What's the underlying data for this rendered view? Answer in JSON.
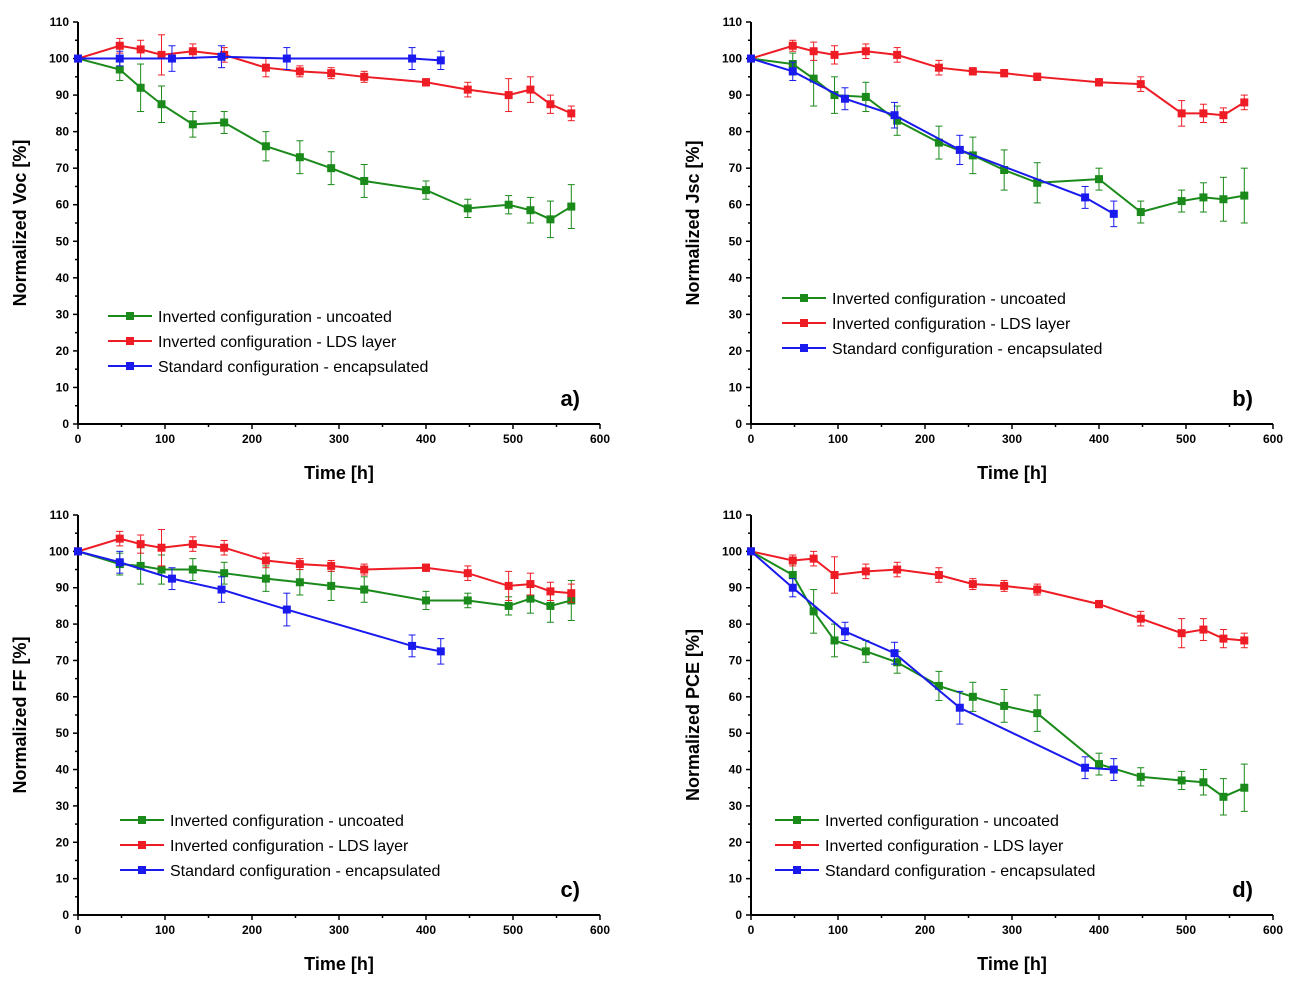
{
  "legend_entries": [
    "Inverted configuration - uncoated",
    "Inverted configuration - LDS layer",
    "Standard configuration - encapsulated"
  ],
  "series_colors": [
    "#1a8a1a",
    "#ee1c24",
    "#1a1aee"
  ],
  "chart_data": [
    {
      "type": "line",
      "panel_label": "a)",
      "xlabel": "Time [h]",
      "ylabel": "Normalized Voc [%]",
      "xlim": [
        0,
        600
      ],
      "ylim": [
        0,
        110
      ],
      "xticks": [
        0,
        100,
        200,
        300,
        400,
        500,
        600
      ],
      "yticks": [
        0,
        10,
        20,
        30,
        40,
        50,
        60,
        70,
        80,
        90,
        100,
        110
      ],
      "legend_position": "lower-left",
      "series": [
        {
          "name": "Inverted configuration - uncoated",
          "color": "#1a8a1a",
          "x": [
            0,
            48,
            72,
            96,
            132,
            168,
            216,
            255,
            291,
            329,
            400,
            448,
            495,
            520,
            543,
            567
          ],
          "y": [
            100,
            97,
            92,
            87.5,
            82,
            82.5,
            76,
            73,
            70,
            66.5,
            64,
            59,
            60,
            58.5,
            56,
            59.5
          ],
          "err": [
            0,
            3,
            6.5,
            5,
            3.5,
            3,
            4,
            4.5,
            4.5,
            4.5,
            2.5,
            2.5,
            2.5,
            3.5,
            5,
            6
          ]
        },
        {
          "name": "Inverted configuration - LDS layer",
          "color": "#ee1c24",
          "x": [
            0,
            48,
            72,
            96,
            132,
            168,
            216,
            255,
            291,
            329,
            400,
            448,
            495,
            520,
            543,
            567
          ],
          "y": [
            100,
            103.5,
            102.5,
            101,
            102,
            101,
            97.5,
            96.5,
            96,
            95,
            93.5,
            91.5,
            90,
            91.5,
            87.5,
            85
          ],
          "err": [
            0,
            2,
            2.5,
            5.5,
            2,
            2,
            2.5,
            1.5,
            1.5,
            1.5,
            1,
            2,
            4.5,
            3.5,
            2.5,
            2
          ]
        },
        {
          "name": "Standard configuration - encapsulated",
          "color": "#1a1aee",
          "x": [
            0,
            48,
            108,
            165,
            240,
            384,
            417
          ],
          "y": [
            100,
            100,
            100,
            100.5,
            100,
            100,
            99.5
          ],
          "err": [
            0,
            2,
            3.5,
            3,
            3,
            3,
            2.5
          ]
        }
      ]
    },
    {
      "type": "line",
      "panel_label": "b)",
      "xlabel": "Time [h]",
      "ylabel": "Normalized Jsc [%]",
      "xlim": [
        0,
        600
      ],
      "ylim": [
        0,
        110
      ],
      "xticks": [
        0,
        100,
        200,
        300,
        400,
        500,
        600
      ],
      "yticks": [
        0,
        10,
        20,
        30,
        40,
        50,
        60,
        70,
        80,
        90,
        100,
        110
      ],
      "legend_position": "center-left",
      "series": [
        {
          "name": "Inverted configuration - uncoated",
          "color": "#1a8a1a",
          "x": [
            0,
            48,
            72,
            96,
            132,
            168,
            216,
            255,
            291,
            329,
            400,
            448,
            495,
            520,
            543,
            567
          ],
          "y": [
            100,
            98.5,
            94.5,
            90,
            89.5,
            83,
            77,
            73.5,
            69.5,
            66,
            67,
            58,
            61,
            62,
            61.5,
            62.5
          ],
          "err": [
            0,
            3,
            7.5,
            5,
            4,
            4,
            4.5,
            5,
            5.5,
            5.5,
            3,
            3,
            3,
            4,
            6,
            7.5
          ]
        },
        {
          "name": "Inverted configuration - LDS layer",
          "color": "#ee1c24",
          "x": [
            0,
            48,
            72,
            96,
            132,
            168,
            216,
            255,
            291,
            329,
            400,
            448,
            495,
            520,
            543,
            567
          ],
          "y": [
            100,
            103.5,
            102,
            101,
            102,
            101,
            97.5,
            96.5,
            96,
            95,
            93.5,
            93,
            85,
            85,
            84.5,
            88
          ],
          "err": [
            0,
            1.5,
            2.5,
            2.5,
            2,
            2,
            2,
            1,
            1,
            1,
            1,
            2,
            3.5,
            2.5,
            2,
            2
          ]
        },
        {
          "name": "Standard configuration - encapsulated",
          "color": "#1a1aee",
          "x": [
            0,
            48,
            108,
            165,
            240,
            384,
            417
          ],
          "y": [
            100,
            96.5,
            89,
            84.5,
            75,
            62,
            57.5
          ],
          "err": [
            0,
            2.5,
            3,
            3.5,
            4,
            3,
            3.5
          ]
        }
      ]
    },
    {
      "type": "line",
      "panel_label": "c)",
      "xlabel": "Time [h]",
      "ylabel": "Normalized FF [%]",
      "xlim": [
        0,
        600
      ],
      "ylim": [
        0,
        110
      ],
      "xticks": [
        0,
        100,
        200,
        300,
        400,
        500,
        600
      ],
      "yticks": [
        0,
        10,
        20,
        30,
        40,
        50,
        60,
        70,
        80,
        90,
        100,
        110
      ],
      "legend_position": "lower-left",
      "series": [
        {
          "name": "Inverted configuration - uncoated",
          "color": "#1a8a1a",
          "x": [
            0,
            48,
            72,
            96,
            132,
            168,
            216,
            255,
            291,
            329,
            400,
            448,
            495,
            520,
            543,
            567
          ],
          "y": [
            100,
            96.5,
            96,
            95,
            95,
            94,
            92.5,
            91.5,
            90.5,
            89.5,
            86.5,
            86.5,
            85,
            87,
            85,
            86.5
          ],
          "err": [
            0,
            3,
            5,
            4,
            3,
            3,
            3.5,
            3.5,
            4,
            3.5,
            2.5,
            2,
            2.5,
            4,
            4.5,
            5.5
          ]
        },
        {
          "name": "Inverted configuration - LDS layer",
          "color": "#ee1c24",
          "x": [
            0,
            48,
            72,
            96,
            132,
            168,
            216,
            255,
            291,
            329,
            400,
            448,
            495,
            520,
            543,
            567
          ],
          "y": [
            100,
            103.5,
            102,
            101,
            102,
            101,
            97.5,
            96.5,
            96,
            95,
            95.5,
            94,
            90.5,
            91,
            89,
            88.5
          ],
          "err": [
            0,
            2,
            2.5,
            5,
            2,
            2,
            2,
            1.5,
            1.5,
            1.5,
            1,
            2,
            4,
            3,
            2.5,
            2.5
          ]
        },
        {
          "name": "Standard configuration - encapsulated",
          "color": "#1a1aee",
          "x": [
            0,
            48,
            108,
            165,
            240,
            384,
            417
          ],
          "y": [
            100,
            97,
            92.5,
            89.5,
            84,
            74,
            72.5
          ],
          "err": [
            0,
            3,
            3,
            3.5,
            4.5,
            3,
            3.5
          ]
        }
      ]
    },
    {
      "type": "line",
      "panel_label": "d)",
      "xlabel": "Time [h]",
      "ylabel": "Normalized PCE [%]",
      "xlim": [
        0,
        600
      ],
      "ylim": [
        0,
        110
      ],
      "xticks": [
        0,
        100,
        200,
        300,
        400,
        500,
        600
      ],
      "yticks": [
        0,
        10,
        20,
        30,
        40,
        50,
        60,
        70,
        80,
        90,
        100,
        110
      ],
      "legend_position": "lower-left",
      "series": [
        {
          "name": "Inverted configuration - uncoated",
          "color": "#1a8a1a",
          "x": [
            0,
            48,
            72,
            96,
            132,
            168,
            216,
            255,
            291,
            329,
            400,
            448,
            495,
            520,
            543,
            567
          ],
          "y": [
            100,
            93.5,
            83.5,
            75.5,
            72.5,
            69.5,
            63,
            60,
            57.5,
            55.5,
            41.5,
            38,
            37,
            36.5,
            32.5,
            35
          ],
          "err": [
            0,
            3,
            6,
            4.5,
            3,
            3,
            4,
            4,
            4.5,
            5,
            3,
            2.5,
            2.5,
            3.5,
            5,
            6.5
          ]
        },
        {
          "name": "Inverted configuration - LDS layer",
          "color": "#ee1c24",
          "x": [
            0,
            48,
            72,
            96,
            132,
            168,
            216,
            255,
            291,
            329,
            400,
            448,
            495,
            520,
            543,
            567
          ],
          "y": [
            100,
            97.5,
            98,
            93.5,
            94.5,
            95,
            93.5,
            91,
            90.5,
            89.5,
            85.5,
            81.5,
            77.5,
            78.5,
            76,
            75.5
          ],
          "err": [
            0,
            1.5,
            2,
            5,
            2,
            2,
            2,
            1.5,
            1.5,
            1.5,
            1,
            2,
            4,
            3,
            2.5,
            2
          ]
        },
        {
          "name": "Standard configuration - encapsulated",
          "color": "#1a1aee",
          "x": [
            0,
            48,
            108,
            165,
            240,
            384,
            417
          ],
          "y": [
            100,
            90,
            78,
            72,
            57,
            40.5,
            40
          ],
          "err": [
            0,
            2.5,
            2.5,
            3,
            4.5,
            3,
            3
          ]
        }
      ]
    }
  ]
}
